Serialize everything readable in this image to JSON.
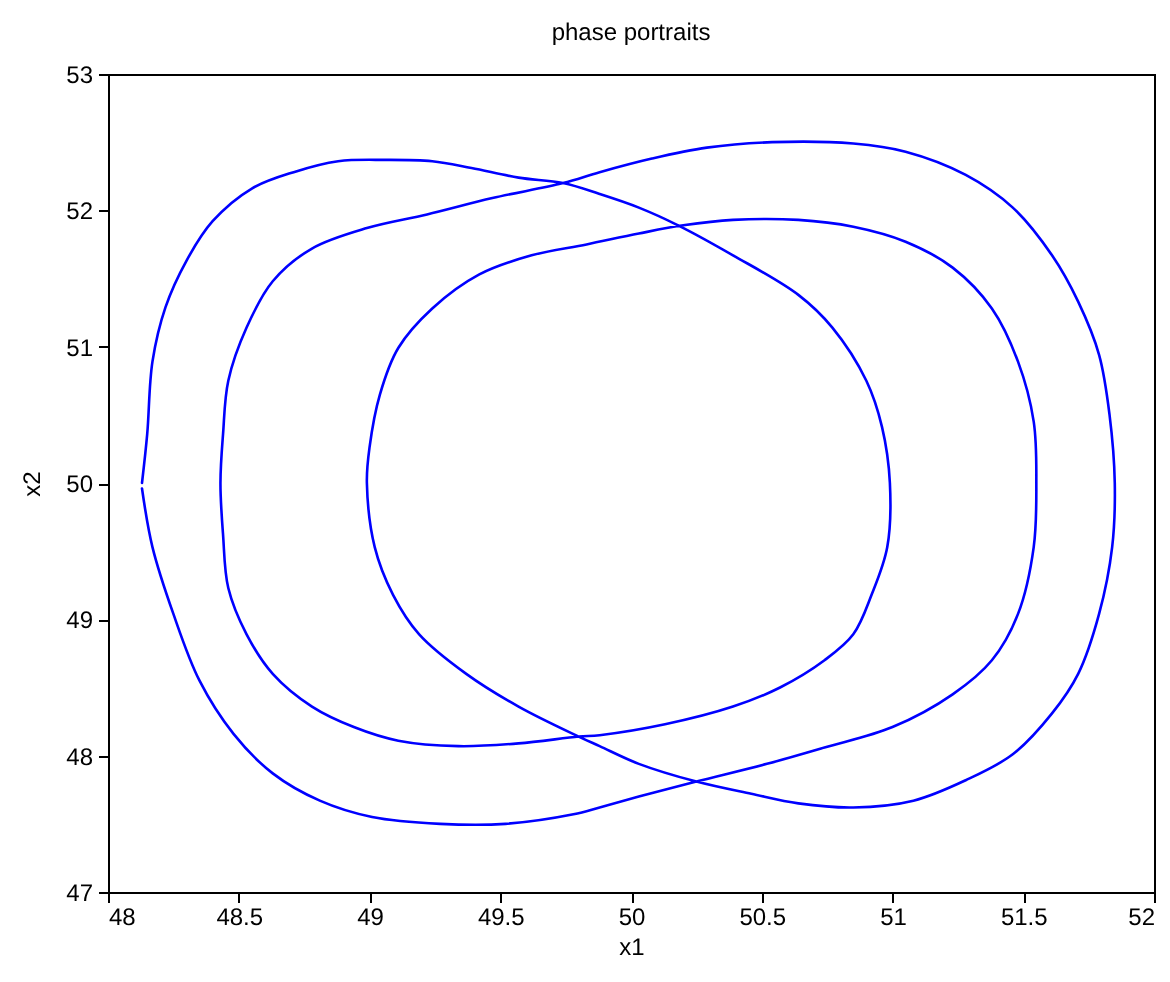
{
  "chart_data": {
    "type": "line",
    "title": "phase portraits",
    "xlabel": "x1",
    "ylabel": "x2",
    "x": [
      48.13,
      48.15,
      48.17,
      48.22,
      48.3,
      48.4,
      48.55,
      48.71,
      48.88,
      49.06,
      49.24,
      49.39,
      49.57,
      49.74,
      49.88,
      50.03,
      50.18,
      50.39,
      50.64,
      50.77,
      50.9,
      50.96,
      50.99,
      50.98,
      50.92,
      50.85,
      50.74,
      50.57,
      50.39,
      50.13,
      49.88,
      49.8,
      49.57,
      49.34,
      49.11,
      48.94,
      48.78,
      48.63,
      48.53,
      48.46,
      48.44,
      48.43,
      48.44,
      48.46,
      48.53,
      48.63,
      48.78,
      48.99,
      49.22,
      49.47,
      49.74,
      49.88,
      50.08,
      50.29,
      50.54,
      50.85,
      51.05,
      51.28,
      51.46,
      51.61,
      51.71,
      51.79,
      51.83,
      51.85,
      51.84,
      51.79,
      51.71,
      51.61,
      51.46,
      51.28,
      51.08,
      50.85,
      50.64,
      50.46,
      50.25,
      50.03,
      49.88,
      49.8,
      49.57,
      49.37,
      49.19,
      49.09,
      49.02,
      48.99,
      49.0,
      49.04,
      49.11,
      49.24,
      49.42,
      49.62,
      49.83,
      50.03,
      50.2,
      50.39,
      50.64,
      50.85,
      51.05,
      51.23,
      51.38,
      51.48,
      51.54,
      51.55,
      51.54,
      51.48,
      51.38,
      51.23,
      51.0,
      50.74,
      50.52,
      50.25,
      50.03,
      49.88,
      49.78,
      49.52,
      49.27,
      49.01,
      48.81,
      48.63,
      48.48,
      48.35,
      48.25,
      48.17,
      48.13
    ],
    "series": [
      {
        "color": "#0000ff",
        "values": [
          50.0,
          50.36,
          50.89,
          51.29,
          51.63,
          51.92,
          52.16,
          52.28,
          52.36,
          52.37,
          52.36,
          52.31,
          52.24,
          52.2,
          52.12,
          52.02,
          51.89,
          51.67,
          51.38,
          51.14,
          50.75,
          50.41,
          50.0,
          49.53,
          49.18,
          48.89,
          48.7,
          48.5,
          48.36,
          48.23,
          48.15,
          48.14,
          48.09,
          48.07,
          48.11,
          48.21,
          48.36,
          48.6,
          48.89,
          49.23,
          49.62,
          50.0,
          50.36,
          50.75,
          51.14,
          51.48,
          51.72,
          51.87,
          51.97,
          52.09,
          52.2,
          52.28,
          52.38,
          52.46,
          52.5,
          52.49,
          52.43,
          52.26,
          52.02,
          51.67,
          51.33,
          50.94,
          50.5,
          50.0,
          49.53,
          49.04,
          48.6,
          48.31,
          48.01,
          47.82,
          47.67,
          47.62,
          47.65,
          47.72,
          47.81,
          47.94,
          48.07,
          48.14,
          48.36,
          48.6,
          48.89,
          49.18,
          49.53,
          50.0,
          50.26,
          50.65,
          50.99,
          51.28,
          51.53,
          51.67,
          51.75,
          51.83,
          51.89,
          51.93,
          51.93,
          51.88,
          51.77,
          51.58,
          51.28,
          50.89,
          50.45,
          50.0,
          49.53,
          49.04,
          48.7,
          48.45,
          48.21,
          48.06,
          47.94,
          47.81,
          47.7,
          47.62,
          47.57,
          47.5,
          47.5,
          47.55,
          47.67,
          47.87,
          48.16,
          48.55,
          49.04,
          49.53,
          49.96
        ]
      }
    ],
    "xlim": [
      48,
      52
    ],
    "ylim": [
      47,
      53
    ],
    "xticks": [
      48,
      48.5,
      49,
      49.5,
      50,
      50.5,
      51,
      51.5,
      52
    ],
    "yticks": [
      47,
      48,
      49,
      50,
      51,
      52,
      53
    ],
    "grid": false,
    "marker": "none",
    "line_style": "solid"
  }
}
